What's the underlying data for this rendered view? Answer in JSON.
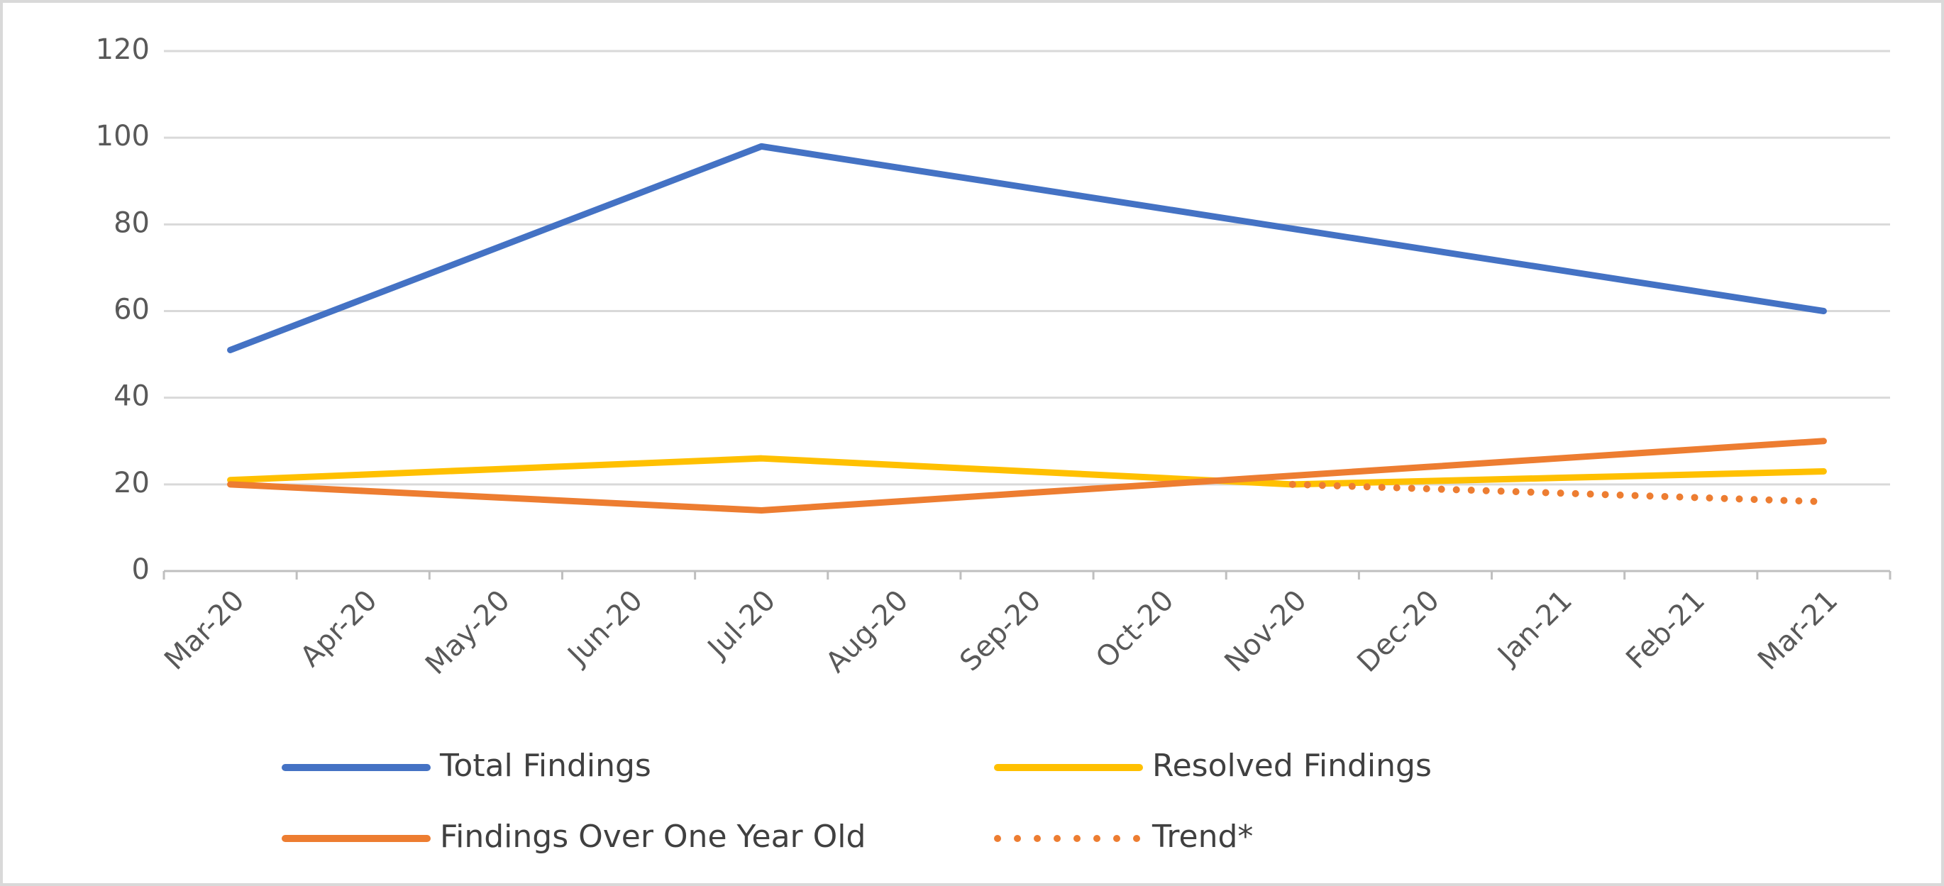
{
  "chart_data": {
    "type": "line",
    "categories": [
      "Mar-20",
      "Apr-20",
      "May-20",
      "Jun-20",
      "Jul-20",
      "Aug-20",
      "Sep-20",
      "Oct-20",
      "Nov-20",
      "Dec-20",
      "Jan-21",
      "Feb-21",
      "Mar-21"
    ],
    "series": [
      {
        "name": "Total Findings",
        "color": "#4472c4",
        "values": [
          51,
          62.75,
          74.5,
          86.25,
          98,
          93.25,
          88.5,
          83.75,
          79,
          74.25,
          69.5,
          64.75,
          60
        ]
      },
      {
        "name": "Resolved Findings",
        "color": "#ffc000",
        "values": [
          21,
          22.25,
          23.5,
          24.75,
          26,
          24.5,
          23,
          21.5,
          20,
          20.75,
          21.5,
          22.25,
          23
        ]
      },
      {
        "name": "Findings Over One Year Old",
        "color": "#ed7d31",
        "values": [
          20,
          18.5,
          17,
          15.5,
          14,
          16,
          18,
          20,
          22,
          24,
          26,
          28,
          30
        ]
      },
      {
        "name": "Trend*",
        "color": "#ed7d31",
        "dash": "dot",
        "values": [
          null,
          null,
          null,
          null,
          null,
          null,
          null,
          null,
          20,
          19,
          18,
          17,
          16
        ]
      }
    ],
    "ylim": [
      0,
      120
    ],
    "yticks": [
      0,
      20,
      40,
      60,
      80,
      100,
      120
    ],
    "grid": true,
    "legend": "bottom"
  }
}
